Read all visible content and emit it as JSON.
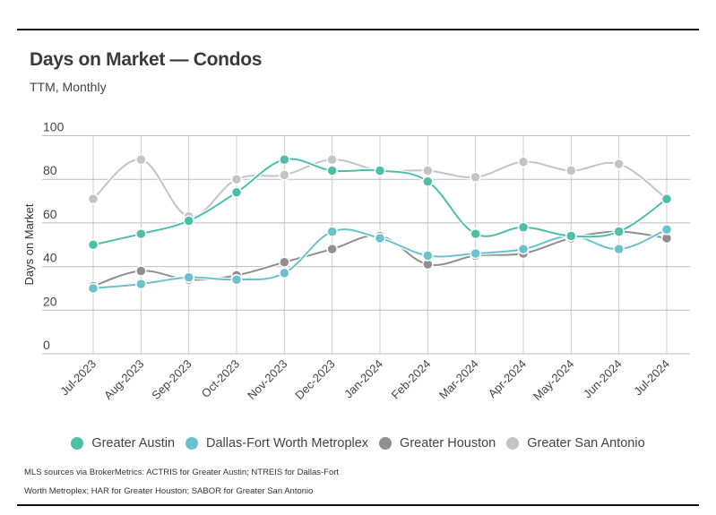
{
  "header": {
    "title": "Days on Market — Condos",
    "subtitle": "TTM, Monthly"
  },
  "footnote": {
    "line1": "MLS sources via BrokerMetrics: ACTRIS for Greater Austin; NTREIS for Dallas-Fort",
    "line2": "Worth Metroplex; HAR for Greater Houston; SABOR for Greater San Antonio"
  },
  "chart_data": {
    "type": "line",
    "title": "Days on Market — Condos",
    "subtitle": "TTM, Monthly",
    "xlabel": "",
    "ylabel": "Days on Market",
    "ylim": [
      0,
      100
    ],
    "yticks": [
      0,
      20,
      40,
      60,
      80,
      100
    ],
    "grid": true,
    "smooth": true,
    "legend_position": "bottom",
    "categories": [
      "Jul-2023",
      "Aug-2023",
      "Sep-2023",
      "Oct-2023",
      "Nov-2023",
      "Dec-2023",
      "Jan-2024",
      "Feb-2024",
      "Mar-2024",
      "Apr-2024",
      "May-2024",
      "Jun-2024",
      "Jul-2024"
    ],
    "series": [
      {
        "name": "Greater San Antonio",
        "color": "#c4c4c4",
        "values": [
          71,
          89,
          63,
          80,
          82,
          89,
          84,
          84,
          81,
          88,
          84,
          87,
          71
        ]
      },
      {
        "name": "Greater Houston",
        "color": "#8f8f8f",
        "values": [
          31,
          38,
          34,
          36,
          42,
          48,
          54,
          41,
          45,
          46,
          53,
          56,
          53
        ]
      },
      {
        "name": "Dallas-Fort Worth Metroplex",
        "color": "#6ac2cf",
        "values": [
          30,
          32,
          35,
          34,
          37,
          56,
          53,
          45,
          46,
          48,
          54,
          48,
          57
        ]
      },
      {
        "name": "Greater Austin",
        "color": "#4dbfa8",
        "values": [
          50,
          55,
          61,
          74,
          89,
          84,
          84,
          79,
          55,
          58,
          54,
          56,
          71
        ]
      }
    ],
    "legend": [
      {
        "name": "Greater Austin",
        "color": "#4dbfa8"
      },
      {
        "name": "Dallas-Fort Worth Metroplex",
        "color": "#6ac2cf"
      },
      {
        "name": "Greater Houston",
        "color": "#8f8f8f"
      },
      {
        "name": "Greater San Antonio",
        "color": "#c4c4c4"
      }
    ]
  }
}
